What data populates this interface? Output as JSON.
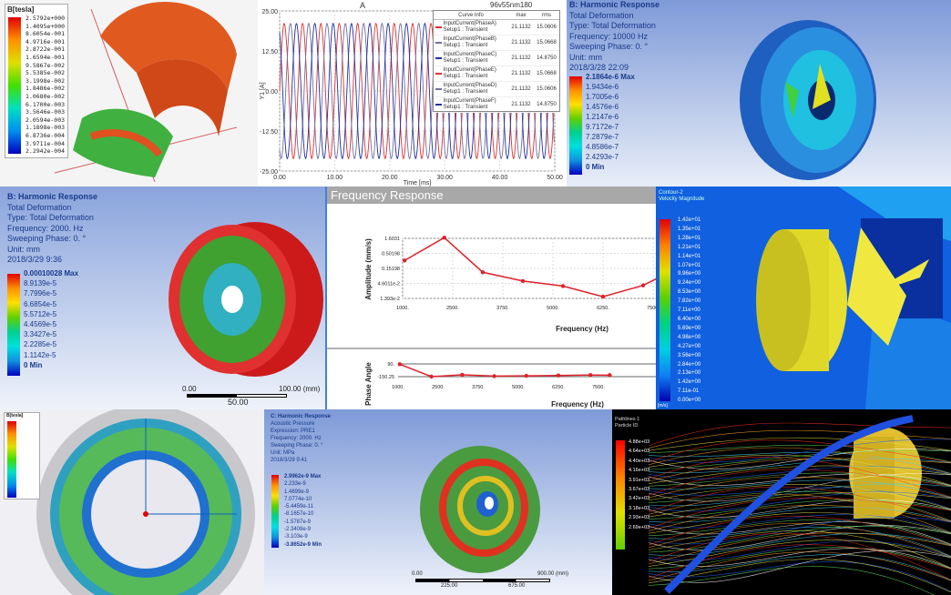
{
  "p1": {
    "title": "B[tesla]",
    "values": [
      "2.5792e+000",
      "1.4095e+000",
      "8.6054e-001",
      "4.9716e-001",
      "2.8722e-001",
      "1.6594e-001",
      "9.5867e-002",
      "5.5385e-002",
      "3.1998e-002",
      "1.8486e-002",
      "1.0680e-002",
      "6.1700e-003",
      "3.5646e-003",
      "2.0594e-003",
      "1.1898e-003",
      "6.8736e-004",
      "3.9711e-004",
      "2.2942e-004"
    ]
  },
  "p2": {
    "chart_data": {
      "type": "line",
      "title": "A",
      "xlabel": "Time [ms]",
      "ylabel": "Y1 [A]",
      "xlim": [
        0,
        50
      ],
      "ylim": [
        -25,
        25
      ],
      "xticks": [
        "0.00",
        "10.00",
        "20.00",
        "30.00",
        "40.00",
        "50.00"
      ],
      "yticks": [
        "25.00",
        "12.50",
        "0.00",
        "-12.50",
        "-25.00"
      ],
      "project": "96v55nm180",
      "frequency_hz": 300,
      "amplitude": 21.1132,
      "table_header": [
        "Curve Info",
        "max",
        "rms"
      ],
      "series": [
        {
          "name": "InputCurrent(PhaseA) Setup1 : Transient",
          "max": "21.1132",
          "rms": "15.0606",
          "color": "#e03030",
          "phase_deg": 0
        },
        {
          "name": "InputCurrent(PhaseB) Setup1 : Transient",
          "max": "21.1132",
          "rms": "15.0668",
          "color": "#7070a0",
          "phase_deg": -120
        },
        {
          "name": "InputCurrent(PhaseC) Setup1 : Transient",
          "max": "21.1132",
          "rms": "14.8750",
          "color": "#2030a0",
          "phase_deg": 120
        },
        {
          "name": "InputCurrent(PhaseE) Setup1 : Transient",
          "max": "21.1132",
          "rms": "15.0668",
          "color": "#e03030",
          "phase_deg": 0
        },
        {
          "name": "InputCurrent(PhaseD) Setup1 : Transient",
          "max": "21.1132",
          "rms": "15.0606",
          "color": "#7070a0",
          "phase_deg": -120
        },
        {
          "name": "InputCurrent(PhaseF) Setup1 : Transient",
          "max": "21.1132",
          "rms": "14.8750",
          "color": "#2030a0",
          "phase_deg": 120
        }
      ]
    }
  },
  "p3": {
    "info": [
      "B: Harmonic Response",
      "Total Deformation",
      "Type: Total Deformation",
      "Frequency: 10000 Hz",
      "Sweeping Phase: 0. °",
      "Unit: mm",
      "2018/3/28 22:09"
    ],
    "values": [
      "2.1864e-6 Max",
      "1.9434e-6",
      "1.7005e-6",
      "1.4576e-6",
      "1.2147e-6",
      "9.7172e-7",
      "7.2879e-7",
      "4.8586e-7",
      "2.4293e-7",
      "0 Min"
    ]
  },
  "p4": {
    "info": [
      "B: Harmonic Response",
      "Total Deformation",
      "Type: Total Deformation",
      "Frequency: 2000. Hz",
      "Sweeping Phase: 0. °",
      "Unit: mm",
      "2018/3/29 9:36"
    ],
    "values": [
      "0.00010028 Max",
      "8.9139e-5",
      "7.7996e-5",
      "6.6854e-5",
      "5.5712e-5",
      "4.4569e-5",
      "3.3427e-5",
      "2.2285e-5",
      "1.1142e-5",
      "0 Min"
    ],
    "scale": [
      "0.00",
      "100.00 (mm)",
      "50.00"
    ]
  },
  "p5": {
    "header": "Frequency Response",
    "chart_data": [
      {
        "type": "line",
        "xlabel": "Frequency (Hz)",
        "ylabel": "Amplitude (mm/s)",
        "yscale": "log",
        "xlim": [
          1000,
          7600
        ],
        "ylim": [
          0.01393,
          1.6031
        ],
        "xticks": [
          "1000.",
          "2500.",
          "3750.",
          "5000.",
          "6250.",
          "7500."
        ],
        "yticks": [
          "1.6031",
          "0.50198",
          "0.15198",
          "4.6011e-2",
          "1.393e-2"
        ],
        "grid": true,
        "color": "#e0202a",
        "x": [
          1050,
          2040,
          3000,
          4000,
          5000,
          6000,
          7000,
          7600
        ],
        "y": [
          0.28,
          1.7,
          0.11,
          0.055,
          0.037,
          0.016,
          0.039,
          0.1
        ]
      },
      {
        "type": "line",
        "xlabel": "Frequency (Hz)",
        "ylabel": "Phase Angle",
        "xlim": [
          1000,
          7600
        ],
        "ylim": [
          -150.25,
          90
        ],
        "xticks": [
          "1000.",
          "2500.",
          "3750.",
          "5000.",
          "6250.",
          "7500."
        ],
        "yticks": [
          "90.",
          "-150.25"
        ],
        "color": "#e0202a",
        "x": [
          1050,
          2040,
          3000,
          4000,
          5000,
          6000,
          7000,
          7600
        ],
        "y": [
          85,
          -150,
          -115,
          -140,
          -135,
          -128,
          -120,
          -122
        ]
      }
    ]
  },
  "p6": {
    "title": [
      "Contour-2",
      "Velocity Magnitude"
    ],
    "values": [
      "1.42e+01",
      "1.35e+01",
      "1.28e+01",
      "1.21e+01",
      "1.14e+01",
      "1.07e+01",
      "9.96e+00",
      "9.24e+00",
      "8.53e+00",
      "7.82e+00",
      "7.11e+00",
      "6.40e+00",
      "5.69e+00",
      "4.98e+00",
      "4.27e+00",
      "3.56e+00",
      "2.84e+00",
      "2.13e+00",
      "1.42e+00",
      "7.11e-01",
      "0.00e+00"
    ],
    "unit": "[m/s]"
  },
  "p7": {
    "title": "B[tesla]"
  },
  "p8": {
    "info": [
      "C: Harmonic Response",
      "Acoustic Pressure",
      "Expression: PRE1",
      "Frequency: 2000. Hz",
      "Sweeping Phase: 0. °",
      "Unit: MPa",
      "2018/3/29 9:41"
    ],
    "values": [
      "2.9962e-9 Max",
      "2.233e-9",
      "1.4699e-9",
      "7.0774e-10",
      "-5.4459e-11",
      "-8.1657e-10",
      "-1.5787e-9",
      "-2.3408e-9",
      "-3.103e-9",
      "-3.8652e-9 Min"
    ],
    "scale": [
      "0.00",
      "900.00 (mm)",
      "225.00",
      "675.00"
    ]
  },
  "p9": {
    "title": [
      "Pathlines 1",
      "Particle ID"
    ],
    "values": [
      "4.88e+03",
      "4.64e+03",
      "4.40e+03",
      "4.16e+03",
      "3.91e+03",
      "3.67e+03",
      "3.42e+03",
      "3.18e+03",
      "2.93e+03",
      "2.69e+03"
    ]
  },
  "colors": {
    "ramp": [
      "#e00000",
      "#ff7000",
      "#ffd000",
      "#c8e000",
      "#30c000",
      "#00c080",
      "#00e0e0",
      "#20a0e0",
      "#0040e0",
      "#0000a0"
    ]
  }
}
